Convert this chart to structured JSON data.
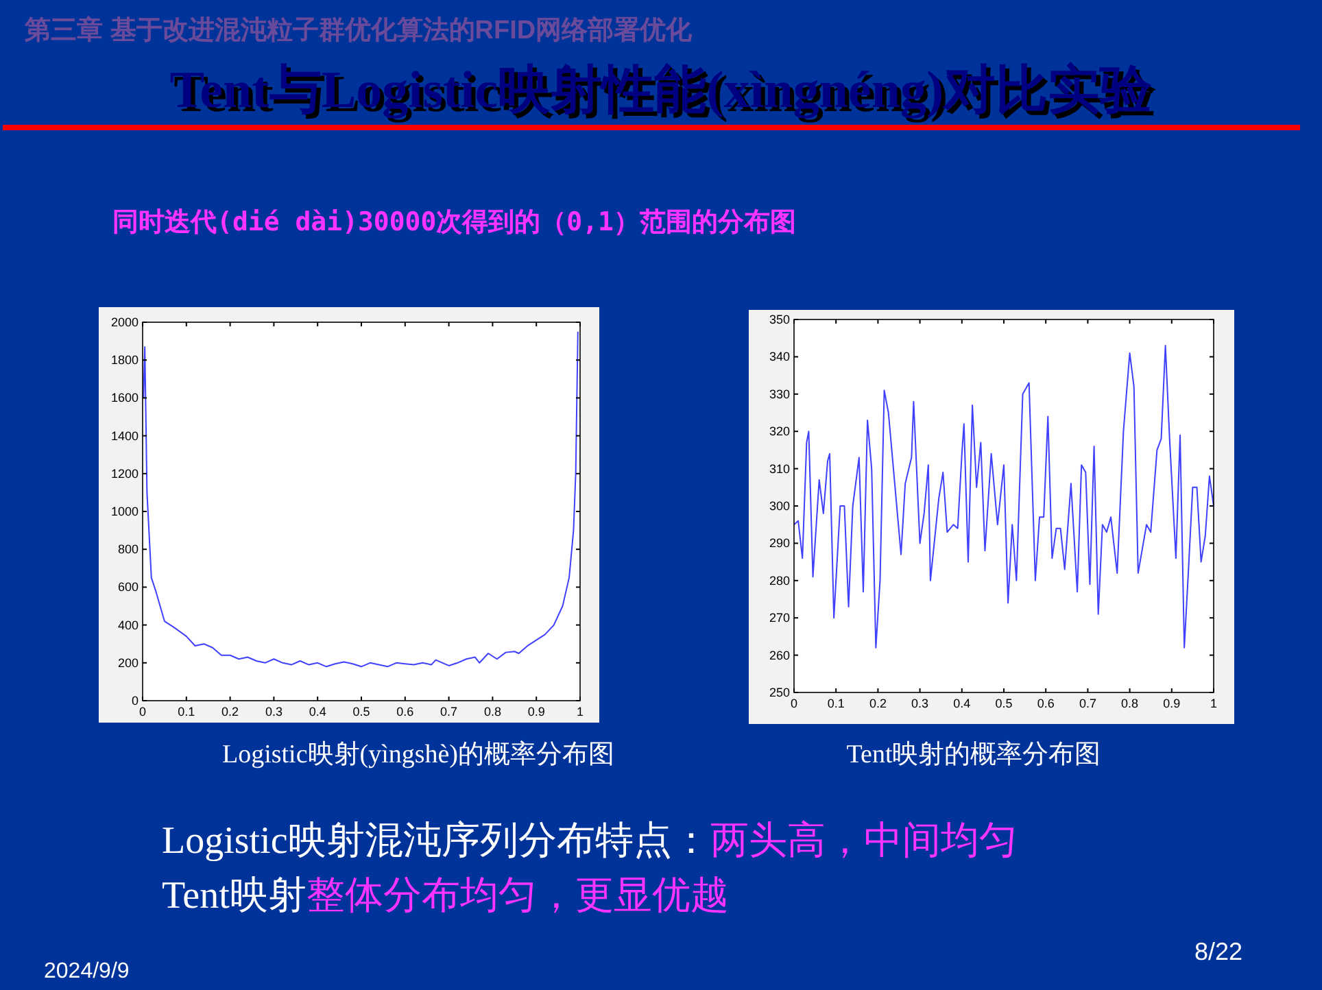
{
  "chart_data": [
    {
      "type": "line",
      "title": "Logistic映射(yìngshè)的概率分布图",
      "annotations": [
        "第三章 基于改进混沌粒子群优化算法的RFID网络部署优化",
        "Tent与Logistic映射性能(xìngnéng)对比实验",
        "同时迭代(dié dài)30000次得到的（0,1）范围的分布图",
        "Logistic映射混沌序列分布特点：",
        "两头高，中间均匀",
        "Tent映射",
        "整体分布均匀，更显优越",
        "2024/9/9",
        "8/22"
      ],
      "x": [
        0.002,
        0.005,
        0.01,
        0.02,
        0.03,
        0.05,
        0.07,
        0.1,
        0.12,
        0.14,
        0.16,
        0.18,
        0.2,
        0.22,
        0.24,
        0.26,
        0.28,
        0.3,
        0.32,
        0.34,
        0.36,
        0.38,
        0.4,
        0.42,
        0.44,
        0.46,
        0.48,
        0.5,
        0.52,
        0.54,
        0.56,
        0.58,
        0.6,
        0.62,
        0.64,
        0.66,
        0.67,
        0.7,
        0.72,
        0.74,
        0.76,
        0.77,
        0.79,
        0.81,
        0.83,
        0.85,
        0.86,
        0.88,
        0.9,
        0.92,
        0.94,
        0.96,
        0.975,
        0.985,
        0.99,
        0.995
      ],
      "series": [
        {
          "color": "#4040ff",
          "values": [
            1600,
            1870,
            1100,
            650,
            580,
            420,
            390,
            340,
            290,
            300,
            280,
            240,
            240,
            220,
            230,
            210,
            200,
            220,
            200,
            190,
            210,
            190,
            200,
            180,
            195,
            205,
            195,
            180,
            200,
            190,
            180,
            200,
            195,
            190,
            200,
            190,
            215,
            185,
            200,
            220,
            230,
            200,
            250,
            220,
            255,
            260,
            250,
            290,
            320,
            350,
            400,
            500,
            650,
            900,
            1200,
            1950
          ]
        }
      ],
      "xlim": [
        0,
        1
      ],
      "ylim": [
        0,
        2000
      ],
      "xticks": [
        0,
        0.1,
        0.2,
        0.3,
        0.4,
        0.5,
        0.6,
        0.7,
        0.8,
        0.9,
        1
      ],
      "yticks": [
        0,
        200,
        400,
        600,
        800,
        1000,
        1200,
        1400,
        1600,
        1800,
        2000
      ]
    },
    {
      "type": "line",
      "title": "Tent映射的概率分布图",
      "x": [
        0,
        0.01,
        0.02,
        0.03,
        0.035,
        0.045,
        0.06,
        0.07,
        0.08,
        0.085,
        0.095,
        0.11,
        0.12,
        0.13,
        0.14,
        0.155,
        0.165,
        0.175,
        0.185,
        0.195,
        0.205,
        0.215,
        0.225,
        0.24,
        0.255,
        0.265,
        0.28,
        0.285,
        0.3,
        0.31,
        0.32,
        0.325,
        0.345,
        0.355,
        0.365,
        0.38,
        0.39,
        0.4,
        0.405,
        0.415,
        0.425,
        0.435,
        0.445,
        0.455,
        0.47,
        0.485,
        0.5,
        0.51,
        0.52,
        0.53,
        0.545,
        0.56,
        0.575,
        0.585,
        0.595,
        0.605,
        0.615,
        0.625,
        0.635,
        0.645,
        0.66,
        0.675,
        0.685,
        0.695,
        0.705,
        0.715,
        0.725,
        0.735,
        0.745,
        0.755,
        0.77,
        0.785,
        0.8,
        0.81,
        0.82,
        0.84,
        0.85,
        0.865,
        0.875,
        0.885,
        0.895,
        0.91,
        0.92,
        0.93,
        0.94,
        0.95,
        0.96,
        0.97,
        0.98,
        0.99,
        1
      ],
      "series": [
        {
          "color": "#4040ff",
          "values": [
            295,
            296,
            286,
            317,
            320,
            281,
            307,
            298,
            312,
            314,
            270,
            300,
            300,
            273,
            300,
            313,
            277,
            323,
            310,
            262,
            280,
            331,
            325,
            306,
            287,
            306,
            313,
            328,
            290,
            298,
            311,
            280,
            302,
            309,
            293,
            295,
            294,
            314,
            322,
            285,
            327,
            305,
            317,
            288,
            314,
            295,
            311,
            274,
            295,
            280,
            330,
            333,
            280,
            297,
            297,
            324,
            286,
            294,
            294,
            283,
            306,
            277,
            311,
            309,
            279,
            316,
            271,
            295,
            293,
            297,
            282,
            320,
            341,
            332,
            282,
            295,
            293,
            315,
            318,
            343,
            318,
            286,
            319,
            262,
            283,
            305,
            305,
            285,
            292,
            308,
            300
          ]
        }
      ],
      "xlim": [
        0,
        1
      ],
      "ylim": [
        250,
        350
      ],
      "xticks": [
        0,
        0.1,
        0.2,
        0.3,
        0.4,
        0.5,
        0.6,
        0.7,
        0.8,
        0.9,
        1
      ],
      "yticks": [
        250,
        260,
        270,
        280,
        290,
        300,
        310,
        320,
        330,
        340,
        350
      ]
    }
  ]
}
